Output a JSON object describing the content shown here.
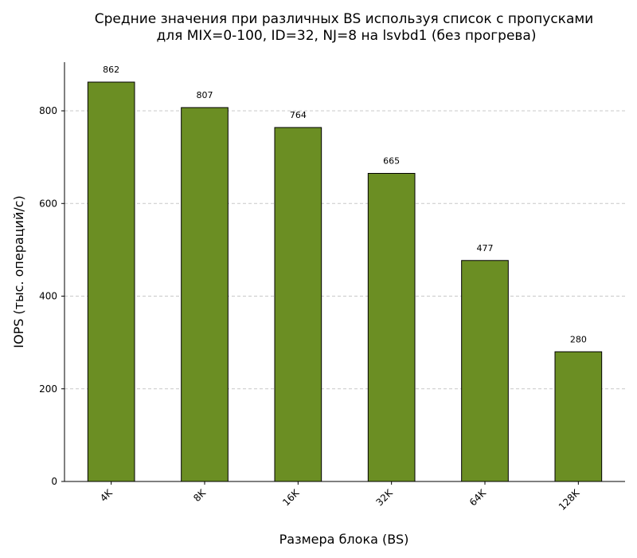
{
  "chart_data": {
    "type": "bar",
    "title": "Средние значения при различных BS используя список с пропусками",
    "subtitle": "для MIX=0-100, ID=32, NJ=8 на lsvbd1 (без прогрева)",
    "xlabel": "Размера блока (BS)",
    "ylabel": "IOPS (тыс. операций/с)",
    "categories": [
      "4K",
      "8K",
      "16K",
      "32K",
      "64K",
      "128K"
    ],
    "values": [
      862,
      807,
      764,
      665,
      477,
      280
    ],
    "ylim": [
      0,
      905
    ],
    "yticks": [
      0,
      200,
      400,
      600,
      800
    ],
    "grid": true,
    "bar_color": "#6b8e23",
    "edge_color": "#000000"
  }
}
